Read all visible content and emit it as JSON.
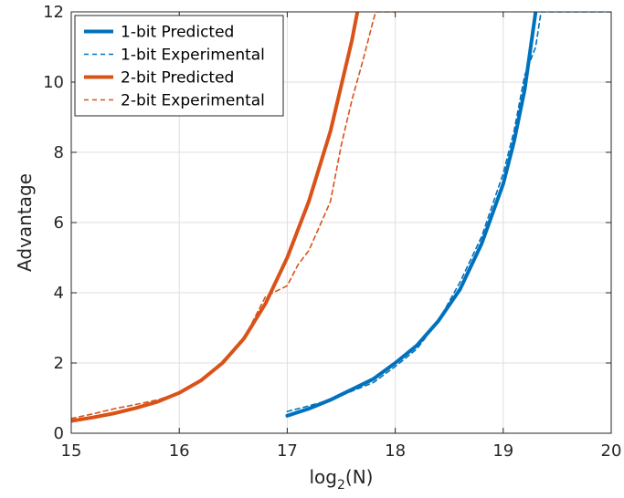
{
  "chart_data": {
    "type": "line",
    "title": "",
    "xlabel_main": "log",
    "xlabel_sub": "2",
    "xlabel_tail": "(N)",
    "ylabel": "Advantage",
    "xlim": [
      15,
      20
    ],
    "ylim": [
      0,
      12
    ],
    "xticks": [
      15,
      16,
      17,
      18,
      19,
      20
    ],
    "yticks": [
      0,
      2,
      4,
      6,
      8,
      10,
      12
    ],
    "grid": true,
    "legend_position": "top-left",
    "series": [
      {
        "name": "1-bit Predicted",
        "color": "#0072BD",
        "style": "solid",
        "points": [
          [
            17.0,
            0.5
          ],
          [
            17.2,
            0.7
          ],
          [
            17.4,
            0.95
          ],
          [
            17.6,
            1.25
          ],
          [
            17.8,
            1.55
          ],
          [
            18.0,
            2.0
          ],
          [
            18.2,
            2.5
          ],
          [
            18.4,
            3.2
          ],
          [
            18.6,
            4.1
          ],
          [
            18.8,
            5.4
          ],
          [
            19.0,
            7.1
          ],
          [
            19.1,
            8.3
          ],
          [
            19.2,
            9.8
          ],
          [
            19.3,
            12.0
          ]
        ]
      },
      {
        "name": "1-bit Experimental",
        "color": "#0072BD",
        "style": "dashed",
        "points": [
          [
            17.0,
            0.62
          ],
          [
            17.2,
            0.78
          ],
          [
            17.4,
            0.95
          ],
          [
            17.6,
            1.2
          ],
          [
            17.8,
            1.45
          ],
          [
            18.0,
            1.9
          ],
          [
            18.2,
            2.4
          ],
          [
            18.4,
            3.2
          ],
          [
            18.6,
            4.3
          ],
          [
            18.8,
            5.6
          ],
          [
            19.0,
            7.4
          ],
          [
            19.1,
            8.6
          ],
          [
            19.2,
            10.2
          ],
          [
            19.3,
            11.0
          ],
          [
            19.35,
            12.0
          ],
          [
            20.0,
            12.0
          ]
        ]
      },
      {
        "name": "2-bit Predicted",
        "color": "#D95319",
        "style": "solid",
        "points": [
          [
            15.0,
            0.35
          ],
          [
            15.2,
            0.45
          ],
          [
            15.4,
            0.57
          ],
          [
            15.6,
            0.72
          ],
          [
            15.8,
            0.9
          ],
          [
            16.0,
            1.15
          ],
          [
            16.2,
            1.5
          ],
          [
            16.4,
            2.0
          ],
          [
            16.6,
            2.7
          ],
          [
            16.8,
            3.7
          ],
          [
            17.0,
            5.0
          ],
          [
            17.2,
            6.6
          ],
          [
            17.4,
            8.6
          ],
          [
            17.6,
            11.2
          ],
          [
            17.65,
            12.0
          ]
        ]
      },
      {
        "name": "2-bit Experimental",
        "color": "#D95319",
        "style": "dashed",
        "points": [
          [
            15.0,
            0.42
          ],
          [
            15.2,
            0.55
          ],
          [
            15.4,
            0.7
          ],
          [
            15.6,
            0.82
          ],
          [
            15.8,
            0.95
          ],
          [
            16.0,
            1.15
          ],
          [
            16.2,
            1.5
          ],
          [
            16.4,
            2.05
          ],
          [
            16.6,
            2.7
          ],
          [
            16.8,
            3.9
          ],
          [
            17.0,
            4.2
          ],
          [
            17.1,
            4.8
          ],
          [
            17.2,
            5.2
          ],
          [
            17.3,
            5.9
          ],
          [
            17.4,
            6.6
          ],
          [
            17.5,
            8.2
          ],
          [
            17.6,
            9.5
          ],
          [
            17.7,
            10.6
          ],
          [
            17.8,
            11.8
          ],
          [
            17.82,
            12.0
          ],
          [
            18.0,
            12.0
          ]
        ]
      }
    ]
  }
}
